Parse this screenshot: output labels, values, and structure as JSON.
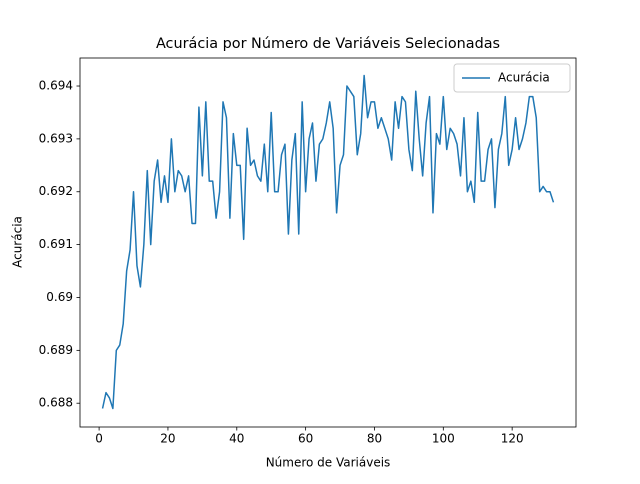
{
  "chart_data": {
    "type": "line",
    "title": "Acurácia por Número de Variáveis Selecionadas",
    "xlabel": "Número de Variáveis",
    "ylabel": "Acurácia",
    "x": [
      1,
      2,
      3,
      4,
      5,
      6,
      7,
      8,
      9,
      10,
      11,
      12,
      13,
      14,
      15,
      16,
      17,
      18,
      19,
      20,
      21,
      22,
      23,
      24,
      25,
      26,
      27,
      28,
      29,
      30,
      31,
      32,
      33,
      34,
      35,
      36,
      37,
      38,
      39,
      40,
      41,
      42,
      43,
      44,
      45,
      46,
      47,
      48,
      49,
      50,
      51,
      52,
      53,
      54,
      55,
      56,
      57,
      58,
      59,
      60,
      61,
      62,
      63,
      64,
      65,
      66,
      67,
      68,
      69,
      70,
      71,
      72,
      73,
      74,
      75,
      76,
      77,
      78,
      79,
      80,
      81,
      82,
      83,
      84,
      85,
      86,
      87,
      88,
      89,
      90,
      91,
      92,
      93,
      94,
      95,
      96,
      97,
      98,
      99,
      100,
      101,
      102,
      103,
      104,
      105,
      106,
      107,
      108,
      109,
      110,
      111,
      112,
      113,
      114,
      115,
      116,
      117,
      118,
      119,
      120,
      121,
      122,
      123,
      124,
      125,
      126,
      127,
      128,
      129,
      130,
      131,
      132
    ],
    "series": [
      {
        "name": "Acurácia",
        "color": "#1f77b4",
        "values": [
          0.6879,
          0.6882,
          0.6881,
          0.6879,
          0.689,
          0.6891,
          0.6895,
          0.6905,
          0.6909,
          0.692,
          0.6906,
          0.6902,
          0.691,
          0.6924,
          0.691,
          0.6922,
          0.6926,
          0.6918,
          0.6923,
          0.6918,
          0.693,
          0.692,
          0.6924,
          0.6923,
          0.692,
          0.6923,
          0.6914,
          0.6914,
          0.6936,
          0.6923,
          0.6937,
          0.6922,
          0.6922,
          0.6915,
          0.692,
          0.6937,
          0.6934,
          0.6915,
          0.6931,
          0.6925,
          0.6925,
          0.6911,
          0.6932,
          0.6925,
          0.6926,
          0.6923,
          0.6922,
          0.6929,
          0.692,
          0.6935,
          0.692,
          0.692,
          0.6927,
          0.6929,
          0.6912,
          0.6926,
          0.6931,
          0.6912,
          0.6937,
          0.692,
          0.693,
          0.6933,
          0.6922,
          0.6929,
          0.693,
          0.6933,
          0.6937,
          0.6932,
          0.6916,
          0.6925,
          0.6927,
          0.694,
          0.6939,
          0.6938,
          0.6927,
          0.6931,
          0.6942,
          0.6934,
          0.6937,
          0.6937,
          0.6932,
          0.6934,
          0.6932,
          0.693,
          0.6926,
          0.6937,
          0.6932,
          0.6938,
          0.6937,
          0.6928,
          0.6924,
          0.6939,
          0.693,
          0.6923,
          0.6933,
          0.6938,
          0.6916,
          0.6931,
          0.6929,
          0.6938,
          0.6928,
          0.6932,
          0.6931,
          0.6929,
          0.6923,
          0.6934,
          0.692,
          0.6922,
          0.6918,
          0.6935,
          0.6922,
          0.6922,
          0.6928,
          0.693,
          0.6917,
          0.6928,
          0.6931,
          0.6938,
          0.6925,
          0.6928,
          0.6934,
          0.6928,
          0.693,
          0.6933,
          0.6938,
          0.6938,
          0.6934,
          0.692,
          0.6921,
          0.692,
          0.692,
          0.6918
        ]
      }
    ],
    "xlim": [
      -5.55,
      138.55
    ],
    "xticks": [
      0,
      20,
      40,
      60,
      80,
      100,
      120
    ],
    "ylim": [
      0.68755,
      0.69453
    ],
    "yticks": [
      0.688,
      0.689,
      0.69,
      0.691,
      0.692,
      0.693,
      0.694
    ],
    "legend": "upper right"
  }
}
